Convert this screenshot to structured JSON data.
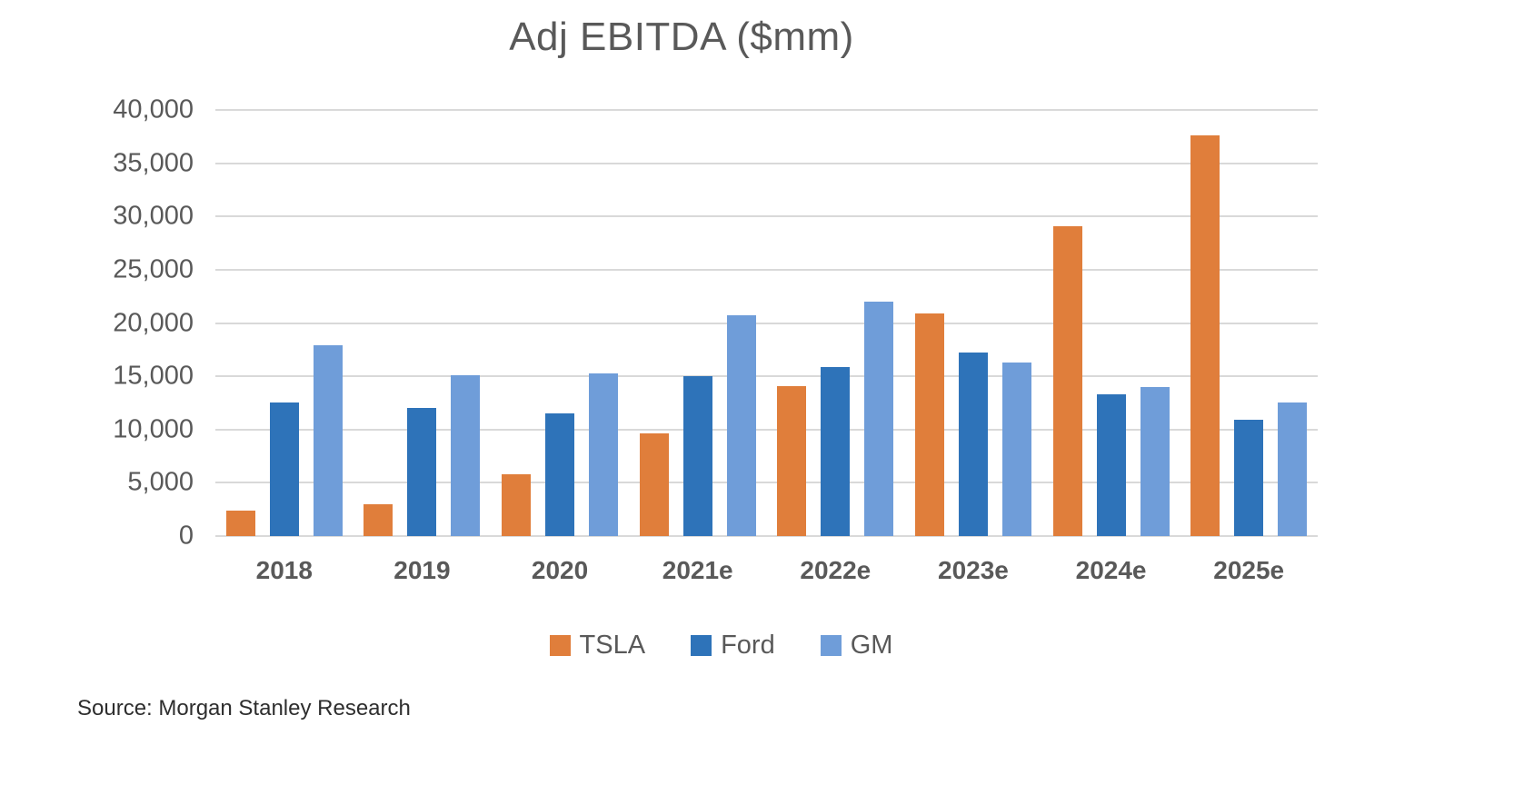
{
  "title": "Adj EBITDA ($mm)",
  "source": "Source: Morgan Stanley Research",
  "colors": {
    "tsla": "#E07E3B",
    "ford": "#2E73B9",
    "gm": "#6F9DD9",
    "gridline": "#D9D9D9",
    "axis_text": "#595959"
  },
  "chart_data": {
    "type": "bar",
    "title": "Adj EBITDA ($mm)",
    "xlabel": "",
    "ylabel": "",
    "categories": [
      "2018",
      "2019",
      "2020",
      "2021e",
      "2022e",
      "2023e",
      "2024e",
      "2025e"
    ],
    "series": [
      {
        "name": "TSLA",
        "color": "#E07E3B",
        "values": [
          2400,
          3000,
          5800,
          9600,
          14100,
          20900,
          29100,
          37600
        ]
      },
      {
        "name": "Ford",
        "color": "#2E73B9",
        "values": [
          12500,
          12000,
          11500,
          15000,
          15900,
          17200,
          13300,
          10900
        ]
      },
      {
        "name": "GM",
        "color": "#6F9DD9",
        "values": [
          17900,
          15100,
          15300,
          20700,
          22000,
          16300,
          14000,
          12500
        ]
      }
    ],
    "ylim": [
      0,
      40000
    ],
    "y_ticks": [
      0,
      5000,
      10000,
      15000,
      20000,
      25000,
      30000,
      35000,
      40000
    ],
    "y_tick_labels": [
      "0",
      "5,000",
      "10,000",
      "15,000",
      "20,000",
      "25,000",
      "30,000",
      "35,000",
      "40,000"
    ],
    "grid": true,
    "legend_position": "bottom"
  }
}
